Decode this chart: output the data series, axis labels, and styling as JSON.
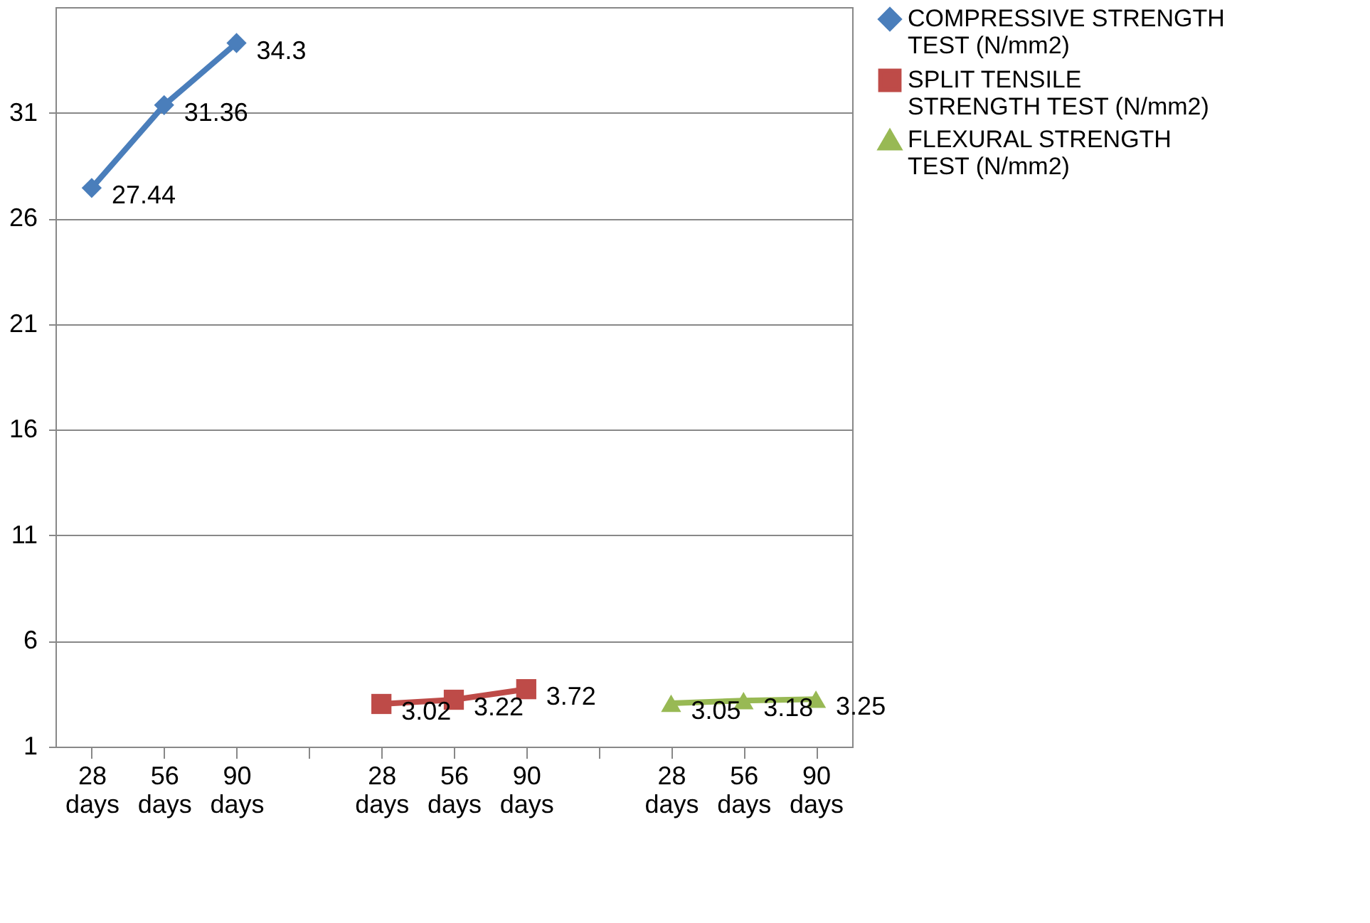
{
  "chart_data": {
    "type": "line",
    "categories": [
      "28 days",
      "56 days",
      "90 days",
      null,
      "28 days",
      "56 days",
      "90 days",
      null,
      "28 days",
      "56 days",
      "90 days"
    ],
    "series": [
      {
        "name": "COMPRESSIVE STRENGTH TEST (N/mm2)",
        "color": "#4a7ebb",
        "marker": "diamond",
        "values": [
          27.44,
          31.36,
          34.3,
          null,
          null,
          null,
          null,
          null,
          null,
          null,
          null
        ]
      },
      {
        "name": "SPLIT TENSILE STRENGTH TEST (N/mm2)",
        "color": "#be4b48",
        "marker": "square",
        "values": [
          null,
          null,
          null,
          null,
          3.02,
          3.22,
          3.72,
          null,
          null,
          null,
          null
        ]
      },
      {
        "name": "FLEXURAL STRENGTH TEST (N/mm2)",
        "color": "#98b954",
        "marker": "triangle",
        "values": [
          null,
          null,
          null,
          null,
          null,
          null,
          null,
          null,
          3.05,
          3.18,
          3.25
        ]
      }
    ],
    "ylim": [
      1,
      36
    ],
    "yticks": [
      1,
      6,
      11,
      16,
      21,
      26,
      31
    ],
    "grid": "y",
    "legend": "right",
    "data_labels": true,
    "line_style": "solid"
  }
}
